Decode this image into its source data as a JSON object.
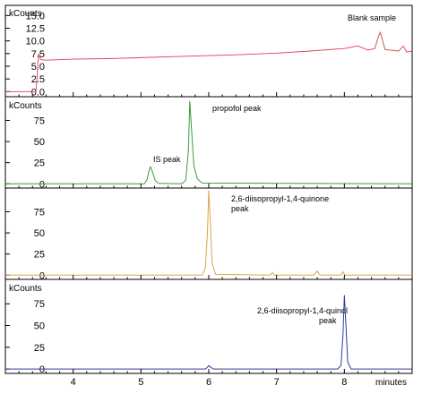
{
  "figure": {
    "x_unit_label": "minutes"
  },
  "chart_data": [
    {
      "type": "line",
      "ylabel": "kCounts",
      "annotation": "Blank sample",
      "color": "#d9414f",
      "yticks": [
        0.0,
        2.5,
        5.0,
        7.5,
        10.0,
        12.5,
        15.0
      ],
      "ytick_labels": [
        "0.0",
        "2.5",
        "5.0",
        "7.5",
        "10.0",
        "12.5",
        "15.0"
      ],
      "ylim": [
        -1.0,
        17.0
      ],
      "xlim": [
        3.0,
        9.0
      ],
      "series": [
        {
          "x": [
            3.0,
            3.45,
            3.47,
            3.49,
            3.52,
            3.6,
            4.0,
            4.5,
            5.0,
            5.5,
            6.0,
            6.5,
            7.0,
            7.5,
            8.0,
            8.2,
            8.35,
            8.45,
            8.5,
            8.53,
            8.6,
            8.8,
            8.87,
            8.92,
            9.0
          ],
          "y": [
            0.0,
            0.0,
            3.2,
            7.5,
            6.3,
            6.2,
            6.4,
            6.5,
            6.7,
            6.9,
            7.1,
            7.3,
            7.6,
            8.0,
            8.5,
            9.0,
            8.2,
            8.5,
            10.8,
            11.7,
            8.3,
            8.0,
            9.0,
            7.8,
            8.0
          ]
        }
      ]
    },
    {
      "type": "line",
      "ylabel": "kCounts",
      "color": "#3c9a3c",
      "yticks": [
        0,
        25,
        50,
        75
      ],
      "ytick_labels": [
        "0",
        "25",
        "50",
        "75"
      ],
      "ylim": [
        -5,
        103
      ],
      "xlim": [
        3.0,
        9.0
      ],
      "annotations": [
        "IS peak",
        "propofol peak"
      ],
      "series": [
        {
          "x": [
            3.0,
            5.05,
            5.09,
            5.12,
            5.14,
            5.17,
            5.21,
            5.26,
            5.6,
            5.66,
            5.7,
            5.72,
            5.74,
            5.78,
            5.83,
            5.9,
            9.0
          ],
          "y": [
            0,
            0,
            5,
            16,
            20,
            14,
            4,
            0.5,
            0,
            4,
            40,
            98,
            72,
            22,
            6,
            1,
            0
          ]
        }
      ]
    },
    {
      "type": "line",
      "color": "#e0a34a",
      "yticks": [
        0,
        25,
        50,
        75
      ],
      "ytick_labels": [
        "0",
        "25",
        "50",
        "75"
      ],
      "ylim": [
        -5,
        103
      ],
      "xlim": [
        3.0,
        9.0
      ],
      "annotation": "2,6-diisopropyl-1,4-quinone peak",
      "series": [
        {
          "x": [
            3.0,
            5.9,
            5.95,
            5.98,
            6.0,
            6.02,
            6.05,
            6.1,
            6.9,
            6.94,
            6.97,
            7.55,
            7.6,
            7.64,
            7.95,
            7.98,
            8.01,
            9.0
          ],
          "y": [
            0,
            0,
            8,
            50,
            100,
            68,
            14,
            1,
            0,
            3,
            0,
            0,
            5,
            0,
            0,
            4,
            0,
            0
          ]
        }
      ]
    },
    {
      "type": "line",
      "ylabel": "kCounts",
      "color": "#2f3a9c",
      "yticks": [
        0,
        25,
        50,
        75
      ],
      "ytick_labels": [
        "0",
        "25",
        "50",
        "75"
      ],
      "ylim": [
        -5,
        103
      ],
      "xlim": [
        3.0,
        9.0
      ],
      "annotation": "2,6-diisopropyl-1,4-quinol peak",
      "xticks": [
        4,
        5,
        6,
        7,
        8
      ],
      "xtick_labels": [
        "4",
        "5",
        "6",
        "7",
        "8"
      ],
      "series": [
        {
          "x": [
            3.0,
            5.95,
            5.98,
            6.0,
            6.03,
            6.07,
            7.9,
            7.95,
            7.98,
            8.0,
            8.02,
            8.05,
            8.1,
            9.0
          ],
          "y": [
            0,
            0,
            2,
            4,
            2,
            0,
            0,
            4,
            40,
            85,
            55,
            8,
            0,
            0
          ]
        }
      ]
    }
  ]
}
